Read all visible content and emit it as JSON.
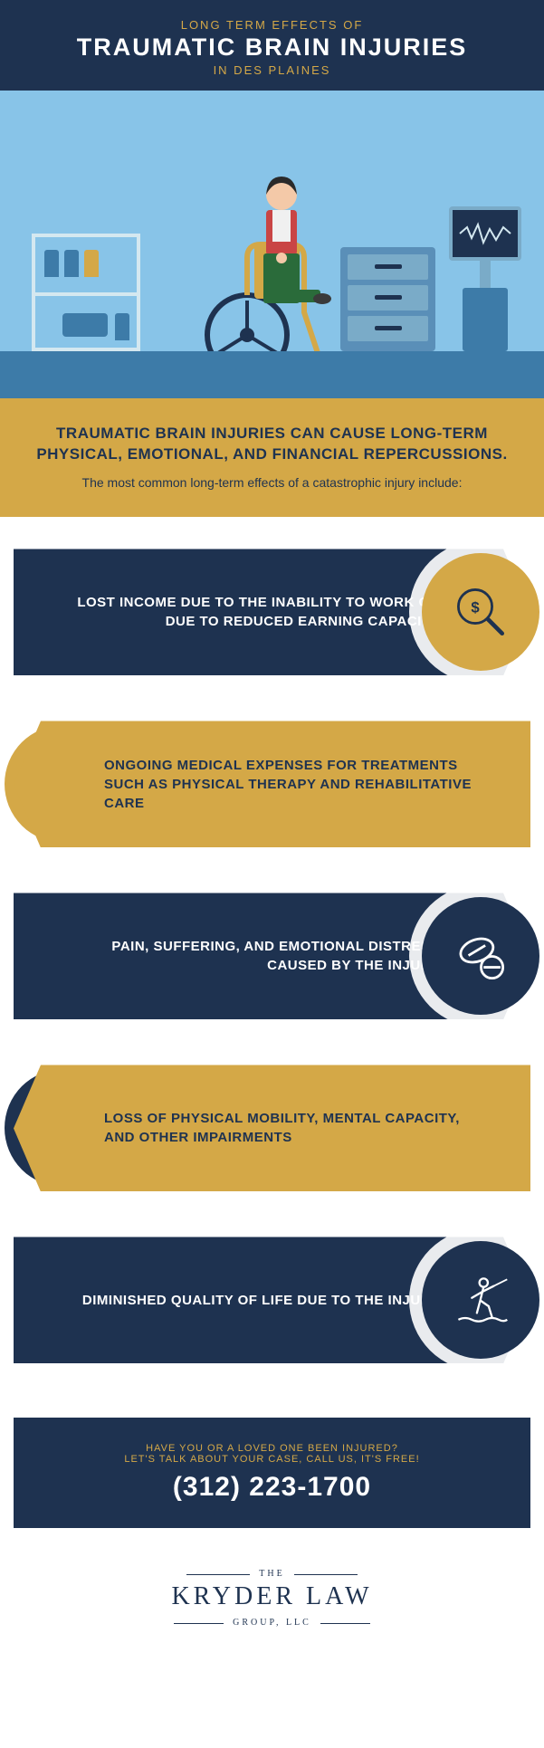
{
  "header": {
    "pretitle": "LONG TERM EFFECTS OF",
    "title": "TRAUMATIC BRAIN INJURIES",
    "subtitle": "IN DES PLAINES"
  },
  "intro": {
    "headline": "TRAUMATIC BRAIN INJURIES CAN CAUSE LONG-TERM PHYSICAL, EMOTIONAL, AND FINANCIAL REPERCUSSIONS.",
    "sub": "The most common long-term effects of a catastrophic injury include:"
  },
  "cards": [
    {
      "text": "LOST INCOME DUE TO THE INABILITY TO WORK OR DUE TO REDUCED EARNING CAPACITY",
      "body_color": "navy",
      "icon_color": "gold",
      "icon_side": "right",
      "icon_name": "magnify-dollar-icon"
    },
    {
      "text": "ONGOING MEDICAL EXPENSES FOR TREATMENTS SUCH AS PHYSICAL THERAPY AND REHABILITATIVE CARE",
      "body_color": "gold",
      "icon_color": "gold",
      "icon_side": "left",
      "icon_name": "physical-therapy-icon"
    },
    {
      "text": "PAIN, SUFFERING, AND EMOTIONAL DISTRESS CAUSED BY THE INJURY",
      "body_color": "navy",
      "icon_color": "navy",
      "icon_side": "right",
      "icon_name": "pills-icon"
    },
    {
      "text": "LOSS OF PHYSICAL MOBILITY, MENTAL CAPACITY, AND OTHER IMPAIRMENTS",
      "body_color": "gold",
      "icon_color": "navy",
      "icon_side": "left",
      "icon_name": "brain-icon"
    },
    {
      "text": "DIMINISHED QUALITY OF LIFE DUE TO THE INJURY",
      "body_color": "navy",
      "icon_color": "navy",
      "icon_side": "right",
      "icon_name": "waterski-icon"
    }
  ],
  "cta": {
    "line1": "HAVE YOU OR A LOVED ONE BEEN INJURED?",
    "line2": "LET'S TALK ABOUT YOUR CASE, CALL US, IT'S FREE!",
    "phone": "(312) 223-1700"
  },
  "footer": {
    "line1": "THE",
    "line2": "KRYDER LAW",
    "line3": "GROUP, LLC"
  },
  "colors": {
    "navy": "#1e3250",
    "gold": "#d4a847",
    "sky": "#88c4e8",
    "blue": "#3d7ba8",
    "lightblue": "#7aabc8",
    "white": "#ffffff"
  }
}
